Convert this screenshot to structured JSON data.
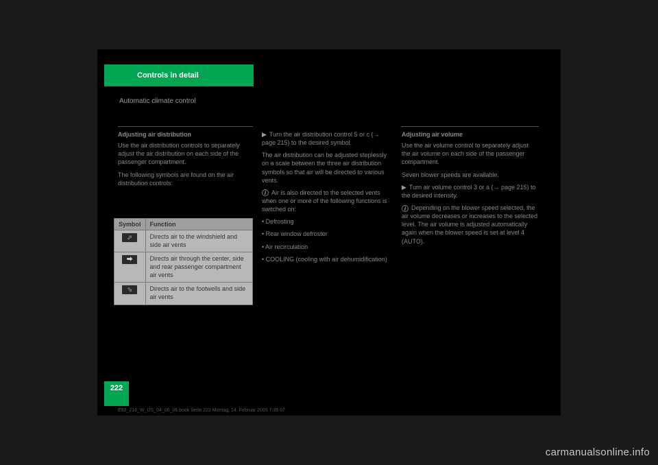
{
  "header": {
    "title": "Controls in detail"
  },
  "section": {
    "subtitle": "Automatic climate control"
  },
  "left": {
    "h": "Adjusting air distribution",
    "p1": "Use the air distribution controls to separately adjust the air distribution on each side of the passenger compartment.",
    "p2": "The following symbols are found on the air distribution controls:"
  },
  "table": {
    "header": {
      "c1": "Symbol",
      "c2": "Function"
    },
    "rows": [
      {
        "glyph": "⬀",
        "text": "Directs air to the windshield and side air vents"
      },
      {
        "glyph": "⮕",
        "text": "Directs air through the center, side and rear passenger compartment air vents"
      },
      {
        "glyph": "⬂",
        "text": "Directs air to the footwells and side air vents"
      }
    ]
  },
  "mid": {
    "p1": "Turn the air distribution control 5 or c (→ page 215) to the desired symbol.",
    "p2": "The air distribution can be adjusted steplessly on a scale between the three air distribution symbols so that air will be directed to various vents.",
    "info": "Air is also directed to the selected vents when one or more of the following functions is switched on:",
    "b1": "Defrosting",
    "b2": "Rear window defroster",
    "b3": "Air recirculation",
    "b4": "COOLING (cooling with air dehumidification)"
  },
  "right": {
    "h": "Adjusting air volume",
    "p1": "Use the air volume control to separately adjust the air volume on each side of the passenger compartment.",
    "p2": "Seven blower speeds are available.",
    "p3": "Turn air volume control 3 or a (→ page 215) to the desired intensity.",
    "info": "Depending on the blower speed selected, the air volume decreases or increases to the selected level. The air volume is adjusted automatically again when the blower speed is set at level 4 (AUTO)."
  },
  "page_number": "222",
  "watermark": "carmanualsonline.info",
  "footer": "E63_216_W_US_04_05_06.book Seite 222  Montag, 14. Februar 2005  7:35 07"
}
